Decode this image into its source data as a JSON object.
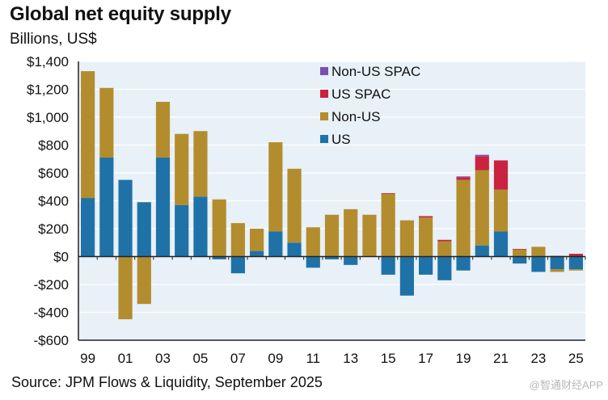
{
  "chart_data": {
    "type": "bar",
    "stacked": true,
    "title": "Global net equity supply",
    "subtitle": "Billions, US$",
    "xlabel": "",
    "ylabel": "Billions, US$",
    "ylim": [
      -600,
      1400
    ],
    "yticks": [
      1400,
      1200,
      1000,
      800,
      600,
      400,
      200,
      0,
      -200,
      -400,
      -600
    ],
    "ytick_labels": [
      "$1,400",
      "$1,200",
      "$1,000",
      "$800",
      "$600",
      "$400",
      "$200",
      "$0",
      "-$200",
      "-$400",
      "-$600"
    ],
    "categories": [
      "99",
      "00",
      "01",
      "02",
      "03",
      "04",
      "05",
      "06",
      "07",
      "08",
      "09",
      "10",
      "11",
      "12",
      "13",
      "14",
      "15",
      "16",
      "17",
      "18",
      "19",
      "20",
      "21",
      "22",
      "23",
      "24",
      "25"
    ],
    "xtick_labels": [
      "99",
      "01",
      "03",
      "05",
      "07",
      "09",
      "11",
      "13",
      "15",
      "17",
      "19",
      "21",
      "23",
      "25"
    ],
    "grid": true,
    "legend_position": "top-center",
    "series": [
      {
        "name": "US",
        "color": "#1f72a8",
        "values": [
          420,
          710,
          550,
          390,
          710,
          370,
          430,
          -20,
          -120,
          40,
          180,
          100,
          -80,
          -20,
          -60,
          0,
          -130,
          -280,
          -130,
          -170,
          -100,
          80,
          180,
          -50,
          -110,
          -90,
          -90
        ]
      },
      {
        "name": "Non-US",
        "color": "#b38d2d",
        "values": [
          910,
          500,
          -450,
          -340,
          400,
          510,
          470,
          410,
          240,
          160,
          640,
          530,
          210,
          300,
          340,
          300,
          450,
          260,
          280,
          110,
          550,
          540,
          300,
          50,
          70,
          -20,
          -10
        ]
      },
      {
        "name": "US SPAC",
        "color": "#c9233f",
        "values": [
          0,
          0,
          0,
          0,
          0,
          0,
          0,
          0,
          0,
          0,
          0,
          0,
          0,
          0,
          0,
          0,
          5,
          0,
          10,
          10,
          20,
          100,
          210,
          5,
          0,
          5,
          20
        ]
      },
      {
        "name": "Non-US SPAC",
        "color": "#7b4fb0",
        "values": [
          0,
          0,
          0,
          0,
          0,
          0,
          0,
          0,
          0,
          0,
          0,
          0,
          0,
          0,
          0,
          0,
          0,
          0,
          0,
          0,
          5,
          10,
          0,
          0,
          0,
          0,
          0
        ]
      }
    ],
    "legend": [
      "Non-US SPAC",
      "US SPAC",
      "Non-US",
      "US"
    ]
  },
  "source": "Source: JPM Flows & Liquidity, September 2025",
  "watermark": "@智通财经APP",
  "colors": {
    "plot_bg": "#e8f0f8",
    "grid": "#ffffff",
    "axis": "#222222"
  }
}
